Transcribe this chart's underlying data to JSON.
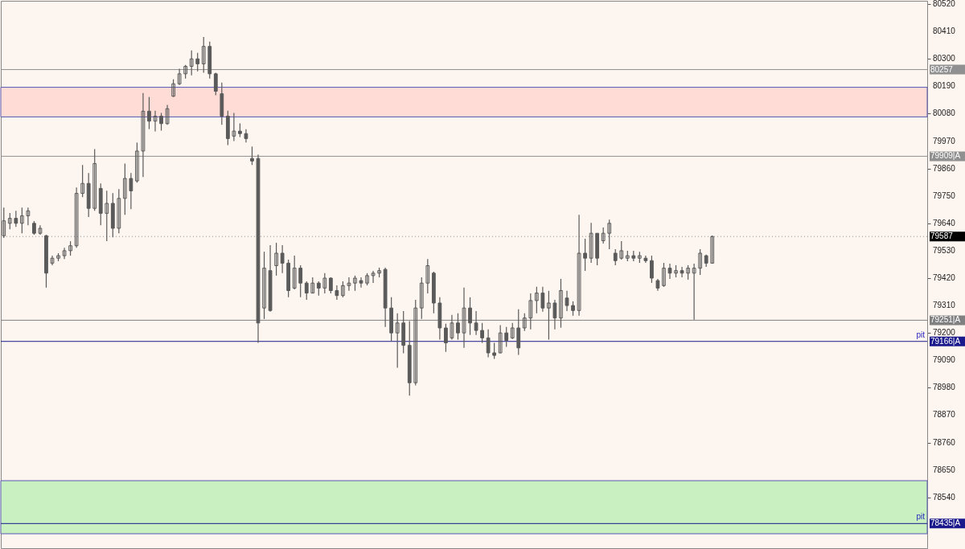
{
  "chart_data": {
    "type": "candlestick",
    "color": "#5a5a5a",
    "categories": [
      null,
      null,
      null,
      null,
      null,
      null,
      null,
      null,
      null,
      null,
      null,
      null,
      null,
      null,
      null,
      null,
      null,
      null,
      null,
      null,
      null,
      null,
      null,
      null,
      null,
      null,
      null,
      null,
      null,
      null,
      null,
      null,
      null,
      null,
      null,
      null,
      null,
      null,
      null,
      null,
      null,
      null,
      null,
      null,
      null,
      null,
      null,
      null,
      null,
      null,
      null,
      null,
      null,
      null,
      null,
      null,
      null,
      null,
      null,
      null,
      null,
      null,
      null,
      null,
      null,
      null,
      null,
      null,
      null,
      null,
      null,
      null,
      null,
      null,
      null,
      null,
      null,
      null,
      null,
      null,
      null,
      null,
      null,
      null,
      null,
      null,
      null,
      null,
      null,
      null,
      null,
      null,
      null,
      null,
      null,
      null,
      null,
      null,
      null,
      null,
      null,
      null,
      null,
      null,
      null,
      null,
      null,
      null,
      null,
      null,
      null,
      null,
      null,
      null,
      null,
      null,
      null,
      null,
      null,
      null,
      null,
      null,
      null,
      null,
      null,
      null,
      null,
      null,
      null,
      null,
      null,
      null,
      null,
      null,
      null,
      null,
      null,
      null,
      null,
      null,
      null,
      null,
      null,
      null,
      null,
      null,
      null,
      null,
      null,
      null,
      null,
      null,
      null
    ],
    "ohlc": [
      [
        79590,
        79703,
        79581,
        79650
      ],
      [
        79640,
        79681,
        79616,
        79660
      ],
      [
        79660,
        79690,
        79626,
        79640
      ],
      [
        79640,
        79703,
        79600,
        79670
      ],
      [
        79670,
        79703,
        79632,
        79690
      ],
      [
        79640,
        79649,
        79594,
        79600
      ],
      [
        79600,
        79632,
        79594,
        79620
      ],
      [
        79590,
        79594,
        79382,
        79440
      ],
      [
        79480,
        79510,
        79472,
        79500
      ],
      [
        79500,
        79520,
        79488,
        79510
      ],
      [
        79510,
        79542,
        79497,
        79530
      ],
      [
        79530,
        79568,
        79510,
        79550
      ],
      [
        79550,
        79784,
        79542,
        79760
      ],
      [
        79760,
        79874,
        79745,
        79800
      ],
      [
        79800,
        79842,
        79665,
        79700
      ],
      [
        79700,
        79938,
        79690,
        79880
      ],
      [
        79780,
        79800,
        79632,
        79680
      ],
      [
        79680,
        79771,
        79568,
        79720
      ],
      [
        79720,
        79761,
        79584,
        79620
      ],
      [
        79620,
        79777,
        79600,
        79740
      ],
      [
        79740,
        79880,
        79674,
        79820
      ],
      [
        79820,
        79842,
        79697,
        79770
      ],
      [
        79810,
        79964,
        79803,
        79930
      ],
      [
        79930,
        80163,
        79826,
        80090
      ],
      [
        80090,
        80147,
        80018,
        80050
      ],
      [
        80050,
        80092,
        80009,
        80070
      ],
      [
        80070,
        80083,
        80012,
        80040
      ],
      [
        80040,
        80115,
        80035,
        80100
      ],
      [
        80150,
        80218,
        80147,
        80200
      ],
      [
        80200,
        80260,
        80195,
        80240
      ],
      [
        80240,
        80276,
        80221,
        80270
      ],
      [
        80270,
        80334,
        80234,
        80300
      ],
      [
        80300,
        80324,
        80250,
        80280
      ],
      [
        80280,
        80388,
        80244,
        80350
      ],
      [
        80350,
        80369,
        80221,
        80240
      ],
      [
        80240,
        80244,
        80154,
        80170
      ],
      [
        80160,
        80205,
        80035,
        80070
      ],
      [
        80070,
        80092,
        79954,
        79980
      ],
      [
        79990,
        80083,
        79970,
        80010
      ],
      [
        80010,
        80041,
        79986,
        80000
      ],
      [
        80000,
        80018,
        79964,
        79980
      ],
      [
        79900,
        79948,
        79874,
        79890
      ],
      [
        79900,
        79916,
        79160,
        79240
      ],
      [
        79300,
        79526,
        79256,
        79460
      ],
      [
        79450,
        79552,
        79285,
        79290
      ],
      [
        79470,
        79562,
        79430,
        79520
      ],
      [
        79520,
        79552,
        79440,
        79480
      ],
      [
        79480,
        79494,
        79343,
        79370
      ],
      [
        79380,
        79510,
        79375,
        79460
      ],
      [
        79460,
        79472,
        79343,
        79400
      ],
      [
        79400,
        79407,
        79333,
        79360
      ],
      [
        79360,
        79423,
        79359,
        79400
      ],
      [
        79400,
        79407,
        79350,
        79380
      ],
      [
        79380,
        79440,
        79359,
        79420
      ],
      [
        79420,
        79423,
        79359,
        79370
      ],
      [
        79370,
        79391,
        79333,
        79350
      ],
      [
        79350,
        79407,
        79343,
        79390
      ],
      [
        79390,
        79423,
        79369,
        79400
      ],
      [
        79400,
        79430,
        79369,
        79420
      ],
      [
        79410,
        79423,
        79382,
        79400
      ],
      [
        79400,
        79440,
        79391,
        79430
      ],
      [
        79430,
        79449,
        79401,
        79440
      ],
      [
        79440,
        79462,
        79423,
        79450
      ],
      [
        79455,
        79462,
        79224,
        79300
      ],
      [
        79300,
        79343,
        79166,
        79200
      ],
      [
        79200,
        79279,
        79060,
        79240
      ],
      [
        79240,
        79288,
        79118,
        79150
      ],
      [
        79150,
        79247,
        78948,
        79000
      ],
      [
        79000,
        79333,
        78989,
        79300
      ],
      [
        79300,
        79423,
        79256,
        79400
      ],
      [
        79400,
        79497,
        79359,
        79470
      ],
      [
        79440,
        79446,
        79279,
        79320
      ],
      [
        79320,
        79343,
        79173,
        79220
      ],
      [
        79220,
        79237,
        79124,
        79160
      ],
      [
        79180,
        79272,
        79173,
        79240
      ],
      [
        79240,
        79279,
        79173,
        79200
      ],
      [
        79200,
        79382,
        79140,
        79300
      ],
      [
        79300,
        79343,
        79192,
        79240
      ],
      [
        79240,
        79288,
        79192,
        79210
      ],
      [
        79210,
        79240,
        79160,
        79180
      ],
      [
        79180,
        79214,
        79102,
        79120
      ],
      [
        79120,
        79160,
        79096,
        79110
      ],
      [
        79120,
        79231,
        79118,
        79200
      ],
      [
        79200,
        79224,
        79144,
        79170
      ],
      [
        79180,
        79240,
        79176,
        79220
      ],
      [
        79220,
        79295,
        79112,
        79140
      ],
      [
        79220,
        79279,
        79208,
        79260
      ],
      [
        79260,
        79359,
        79214,
        79330
      ],
      [
        79330,
        79385,
        79279,
        79360
      ],
      [
        79360,
        79385,
        79285,
        79300
      ],
      [
        79300,
        79369,
        79173,
        79320
      ],
      [
        79320,
        79333,
        79214,
        79260
      ],
      [
        79260,
        79417,
        79221,
        79370
      ],
      [
        79340,
        79369,
        79288,
        79310
      ],
      [
        79310,
        79327,
        79269,
        79290
      ],
      [
        79290,
        79674,
        79269,
        79520
      ],
      [
        79520,
        79578,
        79449,
        79500
      ],
      [
        79500,
        79642,
        79481,
        79600
      ],
      [
        79600,
        79600,
        79472,
        79500
      ],
      [
        79570,
        79623,
        79559,
        79600
      ],
      [
        79600,
        79655,
        79536,
        79640
      ],
      [
        79520,
        79536,
        79472,
        79490
      ],
      [
        79500,
        79568,
        79494,
        79530
      ],
      [
        79500,
        79530,
        79488,
        79510
      ],
      [
        79510,
        79530,
        79488,
        79500
      ],
      [
        79500,
        79526,
        79481,
        79510
      ],
      [
        79500,
        79510,
        79481,
        79490
      ],
      [
        79490,
        79510,
        79401,
        79420
      ],
      [
        79410,
        79417,
        79369,
        79380
      ],
      [
        79390,
        79481,
        79385,
        79460
      ],
      [
        79460,
        79478,
        79417,
        79440
      ],
      [
        79440,
        79472,
        79423,
        79450
      ],
      [
        79450,
        79465,
        79423,
        79440
      ],
      [
        79440,
        79472,
        79414,
        79460
      ],
      [
        79440,
        79478,
        79253,
        79460
      ],
      [
        79460,
        79536,
        79433,
        79520
      ],
      [
        79510,
        79514,
        79465,
        79480
      ],
      [
        79480,
        79591,
        79478,
        79587
      ],
      null,
      null,
      null,
      null,
      null,
      null,
      null,
      null,
      null,
      null,
      null,
      null,
      null,
      null,
      null,
      null,
      null,
      null,
      null,
      null,
      null,
      null,
      null,
      null,
      null,
      null,
      null,
      null,
      null,
      null,
      null,
      null,
      null,
      null,
      null
    ],
    "ylim": [
      78336,
      80533
    ],
    "yticks": [
      78540,
      78650,
      78760,
      78870,
      78980,
      79090,
      79200,
      79310,
      79420,
      79530,
      79640,
      79750,
      79860,
      79970,
      80080,
      80190,
      80300,
      80410,
      80520
    ],
    "tick_labels": "y",
    "grid": false,
    "ref_lines": [
      {
        "axis": "y",
        "value": 80257,
        "label": "80257",
        "color": "#909090",
        "line_style": "solid"
      },
      {
        "axis": "y",
        "value": 79909,
        "label": "79909|A",
        "color": "#909090",
        "line_style": "solid"
      },
      {
        "axis": "y",
        "value": 79587,
        "label": "79587",
        "color": "#909090",
        "line_style": "dotted"
      },
      {
        "axis": "y",
        "value": 79251,
        "label": "79251|A",
        "color": "#808080",
        "line_style": "solid"
      },
      {
        "axis": "y",
        "value": 79166,
        "label": "79166|A",
        "color": "#1a1a8c",
        "line_style": "solid"
      },
      {
        "axis": "y",
        "value": 78435,
        "label": "78435|A",
        "color": "#1a1a8c",
        "line_style": "solid"
      }
    ],
    "bands": [
      {
        "axis": "y",
        "from": 80067,
        "to": 80186,
        "color": "#ffdcd6"
      },
      {
        "axis": "y",
        "from": 78394,
        "to": 78607,
        "color": "#c8f0c0"
      }
    ],
    "annotations": [
      {
        "text": "pit",
        "y": 79166
      },
      {
        "text": "pit",
        "y": 78435
      }
    ]
  }
}
